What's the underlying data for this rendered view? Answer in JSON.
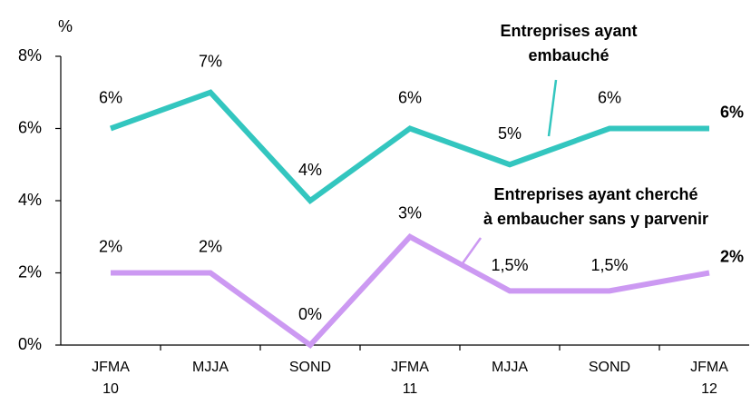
{
  "chart_data": {
    "type": "line",
    "y_axis_label": "%",
    "categories": [
      "JFMA\n10",
      "MJJA",
      "SOND",
      "JFMA\n11",
      "MJJA",
      "SOND",
      "JFMA\n12"
    ],
    "series": [
      {
        "name": "Entreprises ayant\nembauché",
        "color": "#33c6bf",
        "values": [
          6,
          7,
          4,
          6,
          5,
          6,
          6
        ],
        "value_labels": [
          "6%",
          "7%",
          "4%",
          "6%",
          "5%",
          "6%",
          "6%"
        ]
      },
      {
        "name": "Entreprises ayant cherché\nà embaucher sans y parvenir",
        "color": "#cc99f2",
        "values": [
          2,
          2,
          0,
          3,
          1.5,
          1.5,
          2
        ],
        "value_labels": [
          "2%",
          "2%",
          "0%",
          "3%",
          "1,5%",
          "1,5%",
          "2%"
        ]
      }
    ],
    "ylim": [
      0,
      8
    ],
    "yticks": [
      {
        "value": 0,
        "label": "0%"
      },
      {
        "value": 2,
        "label": "2%"
      },
      {
        "value": 4,
        "label": "4%"
      },
      {
        "value": 6,
        "label": "6%"
      },
      {
        "value": 8,
        "label": "8%"
      }
    ],
    "grid": false
  }
}
